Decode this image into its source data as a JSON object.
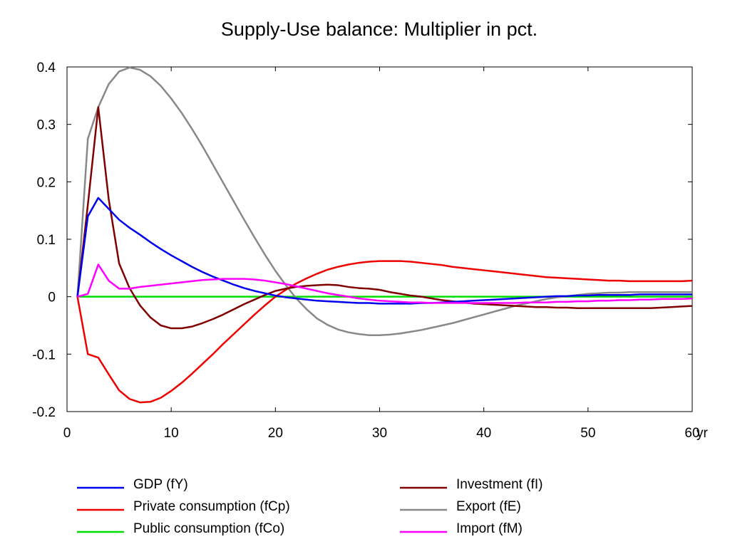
{
  "chart_data": {
    "type": "line",
    "title": "Supply-Use balance: Multiplier in pct.",
    "xlabel": "",
    "ylabel": "",
    "x_unit_label": "yr",
    "xlim": [
      0,
      60
    ],
    "ylim": [
      -0.2,
      0.4
    ],
    "x_ticks": [
      0,
      10,
      20,
      30,
      40,
      50,
      60
    ],
    "x_tick_labels": [
      "0",
      "10",
      "20",
      "30",
      "40",
      "50",
      "60"
    ],
    "y_ticks": [
      0.4,
      0.3,
      0.2,
      0.1,
      0,
      -0.1,
      -0.2
    ],
    "y_tick_labels": [
      "0.4",
      "0.3",
      "0.2",
      "0.1",
      "0",
      "-0.1",
      "-0.2"
    ],
    "grid": false,
    "legend_position": "bottom",
    "x": [
      1,
      2,
      3,
      4,
      5,
      6,
      7,
      8,
      9,
      10,
      11,
      12,
      13,
      14,
      15,
      16,
      17,
      18,
      19,
      20,
      21,
      22,
      23,
      24,
      25,
      26,
      27,
      28,
      29,
      30,
      31,
      32,
      33,
      34,
      35,
      36,
      37,
      38,
      39,
      40,
      41,
      42,
      43,
      44,
      45,
      46,
      47,
      48,
      49,
      50,
      51,
      52,
      53,
      54,
      55,
      56,
      57,
      58,
      59,
      60
    ],
    "series": [
      {
        "name": "GDP (fY)",
        "color": "#0000ee",
        "values": [
          0,
          0.14,
          0.172,
          0.153,
          0.134,
          0.12,
          0.108,
          0.095,
          0.083,
          0.072,
          0.062,
          0.052,
          0.043,
          0.035,
          0.028,
          0.021,
          0.015,
          0.01,
          0.006,
          0.002,
          -0.001,
          -0.003,
          -0.005,
          -0.007,
          -0.008,
          -0.009,
          -0.01,
          -0.011,
          -0.011,
          -0.012,
          -0.012,
          -0.012,
          -0.012,
          -0.011,
          -0.011,
          -0.01,
          -0.009,
          -0.008,
          -0.007,
          -0.006,
          -0.005,
          -0.004,
          -0.003,
          -0.002,
          -0.001,
          0,
          0.001,
          0.001,
          0.002,
          0.002,
          0.003,
          0.003,
          0.003,
          0.003,
          0.004,
          0.004,
          0.004,
          0.004,
          0.004,
          0.004
        ]
      },
      {
        "name": "Private consumption (fCp)",
        "color": "#ee0000",
        "values": [
          0,
          -0.1,
          -0.106,
          -0.135,
          -0.163,
          -0.178,
          -0.184,
          -0.183,
          -0.176,
          -0.164,
          -0.15,
          -0.134,
          -0.117,
          -0.1,
          -0.082,
          -0.065,
          -0.048,
          -0.031,
          -0.015,
          0,
          0.012,
          0.023,
          0.032,
          0.04,
          0.047,
          0.052,
          0.056,
          0.059,
          0.061,
          0.062,
          0.062,
          0.062,
          0.061,
          0.059,
          0.057,
          0.055,
          0.052,
          0.05,
          0.048,
          0.046,
          0.044,
          0.042,
          0.04,
          0.038,
          0.036,
          0.034,
          0.033,
          0.032,
          0.031,
          0.03,
          0.029,
          0.028,
          0.028,
          0.027,
          0.027,
          0.027,
          0.027,
          0.027,
          0.027,
          0.028
        ]
      },
      {
        "name": "Public consumption (fCo)",
        "color": "#00dd00",
        "values": [
          0,
          0,
          0,
          0,
          0,
          0,
          0,
          0,
          0,
          0,
          0,
          0,
          0,
          0,
          0,
          0,
          0,
          0,
          0,
          0,
          0,
          0,
          0,
          0,
          0,
          0,
          0,
          0,
          0,
          0,
          0,
          0,
          0,
          0,
          0,
          0,
          0,
          0,
          0,
          0,
          0,
          0,
          0,
          0,
          0,
          0,
          0,
          0,
          0,
          0,
          0,
          0,
          0,
          0,
          0,
          0,
          0,
          0,
          0,
          0
        ]
      },
      {
        "name": "Investment (fI)",
        "color": "#800000",
        "values": [
          0,
          0.16,
          0.33,
          0.17,
          0.058,
          0.015,
          -0.015,
          -0.036,
          -0.05,
          -0.055,
          -0.055,
          -0.052,
          -0.046,
          -0.039,
          -0.031,
          -0.022,
          -0.013,
          -0.005,
          0.003,
          0.01,
          0.014,
          0.017,
          0.019,
          0.02,
          0.021,
          0.02,
          0.017,
          0.015,
          0.014,
          0.012,
          0.008,
          0.005,
          0.002,
          0,
          -0.003,
          -0.006,
          -0.008,
          -0.01,
          -0.012,
          -0.013,
          -0.014,
          -0.015,
          -0.016,
          -0.017,
          -0.018,
          -0.018,
          -0.019,
          -0.019,
          -0.02,
          -0.02,
          -0.02,
          -0.02,
          -0.02,
          -0.02,
          -0.02,
          -0.02,
          -0.019,
          -0.018,
          -0.017,
          -0.016
        ]
      },
      {
        "name": "Export (fE)",
        "color": "#888888",
        "values": [
          0,
          0.275,
          0.33,
          0.37,
          0.392,
          0.399,
          0.395,
          0.384,
          0.367,
          0.345,
          0.32,
          0.292,
          0.262,
          0.23,
          0.198,
          0.166,
          0.134,
          0.103,
          0.073,
          0.045,
          0.02,
          -0.003,
          -0.022,
          -0.038,
          -0.049,
          -0.057,
          -0.062,
          -0.065,
          -0.067,
          -0.067,
          -0.066,
          -0.064,
          -0.061,
          -0.058,
          -0.054,
          -0.05,
          -0.046,
          -0.041,
          -0.036,
          -0.031,
          -0.026,
          -0.021,
          -0.016,
          -0.012,
          -0.008,
          -0.004,
          -0.001,
          0.001,
          0.003,
          0.005,
          0.006,
          0.007,
          0.007,
          0.008,
          0.008,
          0.008,
          0.008,
          0.008,
          0.008,
          0.008
        ]
      },
      {
        "name": "Import (fM)",
        "color": "#ff00ff",
        "values": [
          0,
          0.005,
          0.056,
          0.028,
          0.014,
          0.014,
          0.017,
          0.019,
          0.021,
          0.023,
          0.025,
          0.027,
          0.029,
          0.03,
          0.031,
          0.031,
          0.031,
          0.03,
          0.028,
          0.025,
          0.022,
          0.018,
          0.014,
          0.01,
          0.006,
          0.003,
          0,
          -0.003,
          -0.005,
          -0.007,
          -0.008,
          -0.009,
          -0.01,
          -0.01,
          -0.011,
          -0.011,
          -0.011,
          -0.011,
          -0.011,
          -0.011,
          -0.011,
          -0.011,
          -0.011,
          -0.01,
          -0.01,
          -0.01,
          -0.009,
          -0.009,
          -0.008,
          -0.008,
          -0.007,
          -0.007,
          -0.006,
          -0.006,
          -0.005,
          -0.005,
          -0.004,
          -0.004,
          -0.004,
          -0.003
        ]
      }
    ]
  }
}
